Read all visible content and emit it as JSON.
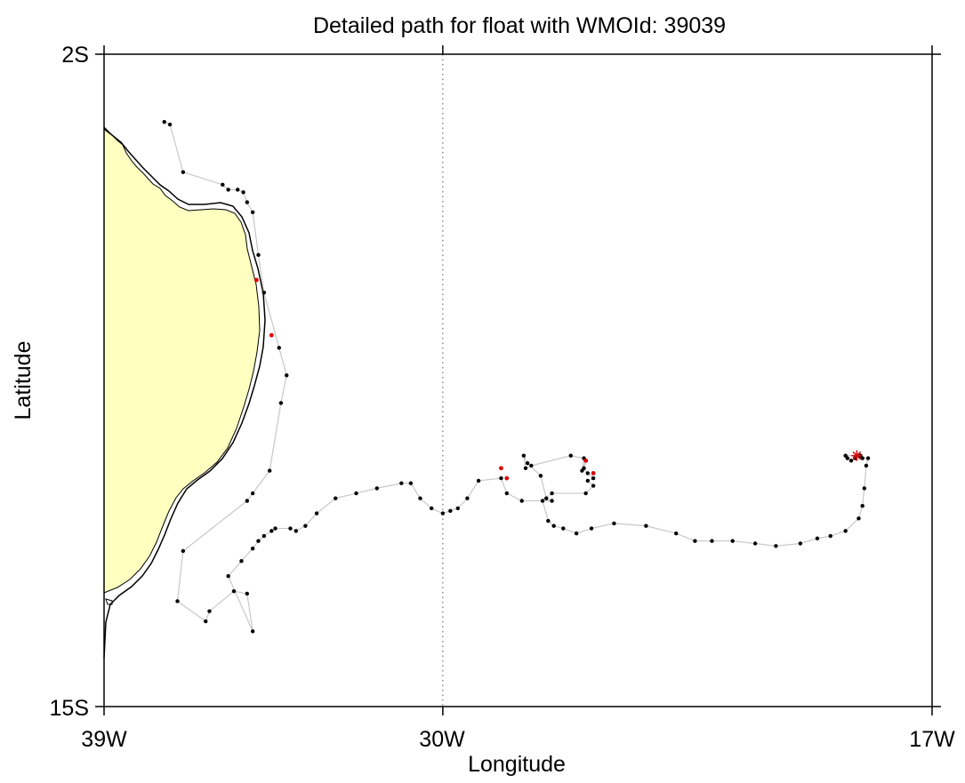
{
  "title": "Detailed path for float with WMOId: 39039",
  "x_axis": {
    "label": "Longitude",
    "ticks": [
      "39W",
      "30W",
      "17W"
    ],
    "tick_values": [
      -39,
      -30,
      -17
    ],
    "range": [
      -39,
      -17
    ]
  },
  "y_axis": {
    "label": "Latitude",
    "ticks": [
      "2S",
      "15S"
    ],
    "tick_values": [
      -2,
      -15
    ],
    "range": [
      -15,
      -2
    ]
  },
  "reference_line": {
    "longitude": -30,
    "style": "dotted"
  },
  "colors": {
    "land": "#ffffc0",
    "coastline": "#000000",
    "track": "#c8c8c8",
    "position": "#000000",
    "flagged_position": "#e00000",
    "current_position_marker": "#d01010",
    "frame": "#000000"
  },
  "chart_data": {
    "type": "scatter",
    "title": "Detailed path for float with WMOId: 39039",
    "xlabel": "Longitude",
    "ylabel": "Latitude",
    "xlim": [
      -39,
      -17
    ],
    "ylim": [
      -15,
      -2
    ],
    "grid": false,
    "series": [
      {
        "points": [
          [
            -37.4,
            -3.35
          ],
          [
            -37.25,
            -3.4
          ],
          [
            -36.9,
            -4.35
          ],
          [
            -35.85,
            -4.6
          ],
          [
            -35.7,
            -4.7
          ],
          [
            -35.45,
            -4.7
          ],
          [
            -35.3,
            -4.75
          ],
          [
            -35.2,
            -4.95
          ],
          [
            -35.05,
            -5.15
          ],
          [
            -34.9,
            -6.0
          ],
          [
            -34.75,
            -6.75
          ],
          [
            -34.35,
            -7.85
          ],
          [
            -34.15,
            -8.4
          ],
          [
            -34.3,
            -8.95
          ],
          [
            -34.6,
            -10.3
          ],
          [
            -35.05,
            -10.75
          ],
          [
            -35.2,
            -10.9
          ],
          [
            -36.9,
            -11.9
          ],
          [
            -37.05,
            -12.9
          ],
          [
            -36.3,
            -13.3
          ],
          [
            -36.2,
            -13.1
          ],
          [
            -35.55,
            -12.7
          ],
          [
            -35.2,
            -12.75
          ],
          [
            -35.05,
            -13.5
          ],
          [
            -35.7,
            -12.4
          ],
          [
            -35.35,
            -12.1
          ],
          [
            -35.05,
            -11.85
          ],
          [
            -34.9,
            -11.7
          ],
          [
            -34.75,
            -11.6
          ],
          [
            -34.55,
            -11.5
          ],
          [
            -34.45,
            -11.45
          ],
          [
            -34.05,
            -11.45
          ],
          [
            -33.9,
            -11.5
          ],
          [
            -33.65,
            -11.4
          ],
          [
            -33.35,
            -11.15
          ],
          [
            -32.85,
            -10.85
          ],
          [
            -32.3,
            -10.75
          ],
          [
            -31.75,
            -10.65
          ],
          [
            -31.1,
            -10.55
          ],
          [
            -30.85,
            -10.55
          ],
          [
            -30.6,
            -10.85
          ],
          [
            -30.3,
            -11.05
          ],
          [
            -30.0,
            -11.15
          ],
          [
            -29.8,
            -11.1
          ],
          [
            -29.6,
            -11.05
          ],
          [
            -29.35,
            -10.85
          ],
          [
            -29.05,
            -10.5
          ],
          [
            -28.45,
            -10.45
          ],
          [
            -28.3,
            -10.75
          ],
          [
            -27.9,
            -10.9
          ],
          [
            -27.1,
            -10.9
          ],
          [
            -27.25,
            -10.85
          ],
          [
            -27.4,
            -10.4
          ],
          [
            -27.75,
            -10.15
          ],
          [
            -27.85,
            -10.0
          ],
          [
            -27.8,
            -10.25
          ],
          [
            -27.65,
            -10.2
          ],
          [
            -26.6,
            -10.0
          ],
          [
            -26.25,
            -10.05
          ],
          [
            -26.3,
            -10.3
          ],
          [
            -26.2,
            -10.1
          ],
          [
            -26.25,
            -10.25
          ],
          [
            -26.15,
            -10.35
          ],
          [
            -26.0,
            -10.45
          ],
          [
            -26.15,
            -10.5
          ],
          [
            -26.0,
            -10.6
          ],
          [
            -26.2,
            -10.75
          ],
          [
            -27.1,
            -10.75
          ],
          [
            -27.35,
            -10.9
          ],
          [
            -27.2,
            -11.3
          ],
          [
            -27.05,
            -11.4
          ],
          [
            -26.8,
            -11.45
          ],
          [
            -26.45,
            -11.55
          ],
          [
            -26.05,
            -11.45
          ],
          [
            -25.45,
            -11.35
          ],
          [
            -24.6,
            -11.4
          ],
          [
            -23.8,
            -11.55
          ],
          [
            -23.3,
            -11.7
          ],
          [
            -22.85,
            -11.7
          ],
          [
            -22.3,
            -11.7
          ],
          [
            -21.7,
            -11.75
          ],
          [
            -21.15,
            -11.8
          ],
          [
            -20.5,
            -11.75
          ],
          [
            -20.05,
            -11.65
          ],
          [
            -19.7,
            -11.6
          ],
          [
            -19.3,
            -11.5
          ],
          [
            -18.95,
            -11.25
          ],
          [
            -18.85,
            -11.0
          ],
          [
            -18.8,
            -10.65
          ],
          [
            -18.75,
            -10.2
          ],
          [
            -18.7,
            -10.05
          ],
          [
            -18.85,
            -10.05
          ],
          [
            -18.95,
            -10.0
          ],
          [
            -19.05,
            -10.05
          ],
          [
            -19.15,
            -10.1
          ],
          [
            -19.25,
            -10.05
          ],
          [
            -19.3,
            -10.0
          ],
          [
            -18.9,
            -10.0
          ]
        ]
      },
      {
        "points": [
          [
            -34.95,
            -6.5
          ],
          [
            -34.55,
            -7.6
          ],
          [
            -28.45,
            -10.25
          ],
          [
            -28.3,
            -10.45
          ],
          [
            -26.2,
            -10.1
          ],
          [
            -26.0,
            -10.35
          ]
        ]
      }
    ],
    "current_position": [
      -19.0,
      -10.0
    ]
  }
}
